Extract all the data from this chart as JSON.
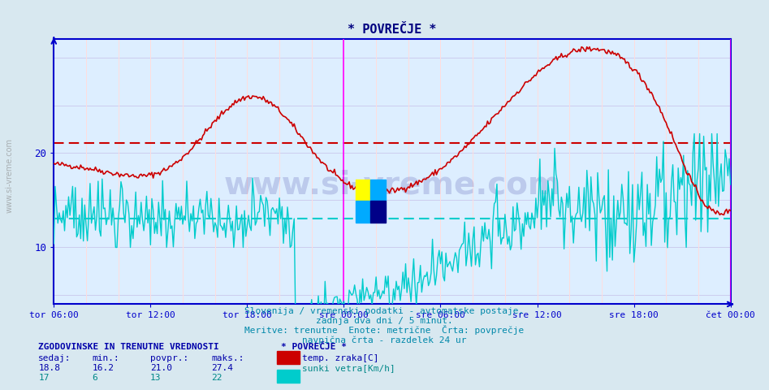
{
  "title": "* POVREČJE *",
  "bg_color": "#d8e8f0",
  "plot_bg_color": "#ddeeff",
  "axis_color": "#0000cc",
  "grid_color_h": "#ccccee",
  "grid_color_v": "#ffdddd",
  "tick_label_color": "#000080",
  "title_color": "#000080",
  "x_labels": [
    "tor 06:00",
    "tor 12:00",
    "tor 18:00",
    "sre 00:00",
    "sre 06:00",
    "sre 12:00",
    "sre 18:00",
    "čet 00:00"
  ],
  "x_positions": [
    0,
    72,
    144,
    216,
    288,
    360,
    432,
    504
  ],
  "y_ticks": [
    10,
    20
  ],
  "ylim": [
    4,
    32
  ],
  "temp_avg": 21.0,
  "wind_avg": 13.0,
  "temp_color": "#cc0000",
  "wind_color": "#00cccc",
  "magenta_line_color": "#ff00ff",
  "subtitle1": "Slovenija / vremenski podatki - avtomatske postaje.",
  "subtitle2": "zadnja dva dni / 5 minut.",
  "subtitle3": "Meritve: trenutne  Enote: metrične  Črta: povprečje",
  "subtitle4": "navpična črta - razdelek 24 ur",
  "subtitle_color": "#0088aa",
  "stats_title": "ZGODOVINSKE IN TRENUTNE VREDNOSTI",
  "stats_color": "#0000aa",
  "col_headers": [
    "sedaj:",
    "min.:",
    "povpr.:",
    "maks.:"
  ],
  "temp_stats": [
    18.8,
    16.2,
    21.0,
    27.4
  ],
  "wind_stats": [
    17,
    6,
    13,
    22
  ],
  "legend_title": "* POVREČJE *",
  "legend_temp": "temp. zraka[C]",
  "legend_wind": "sunki vetra[Km/h]",
  "watermark_text": "www.si-vreme.com",
  "watermark_color": "#000080",
  "watermark_alpha": 0.15,
  "sidebar_text": "www.si-vreme.com",
  "sidebar_color": "#888888",
  "wind_stats_color": "#008888"
}
